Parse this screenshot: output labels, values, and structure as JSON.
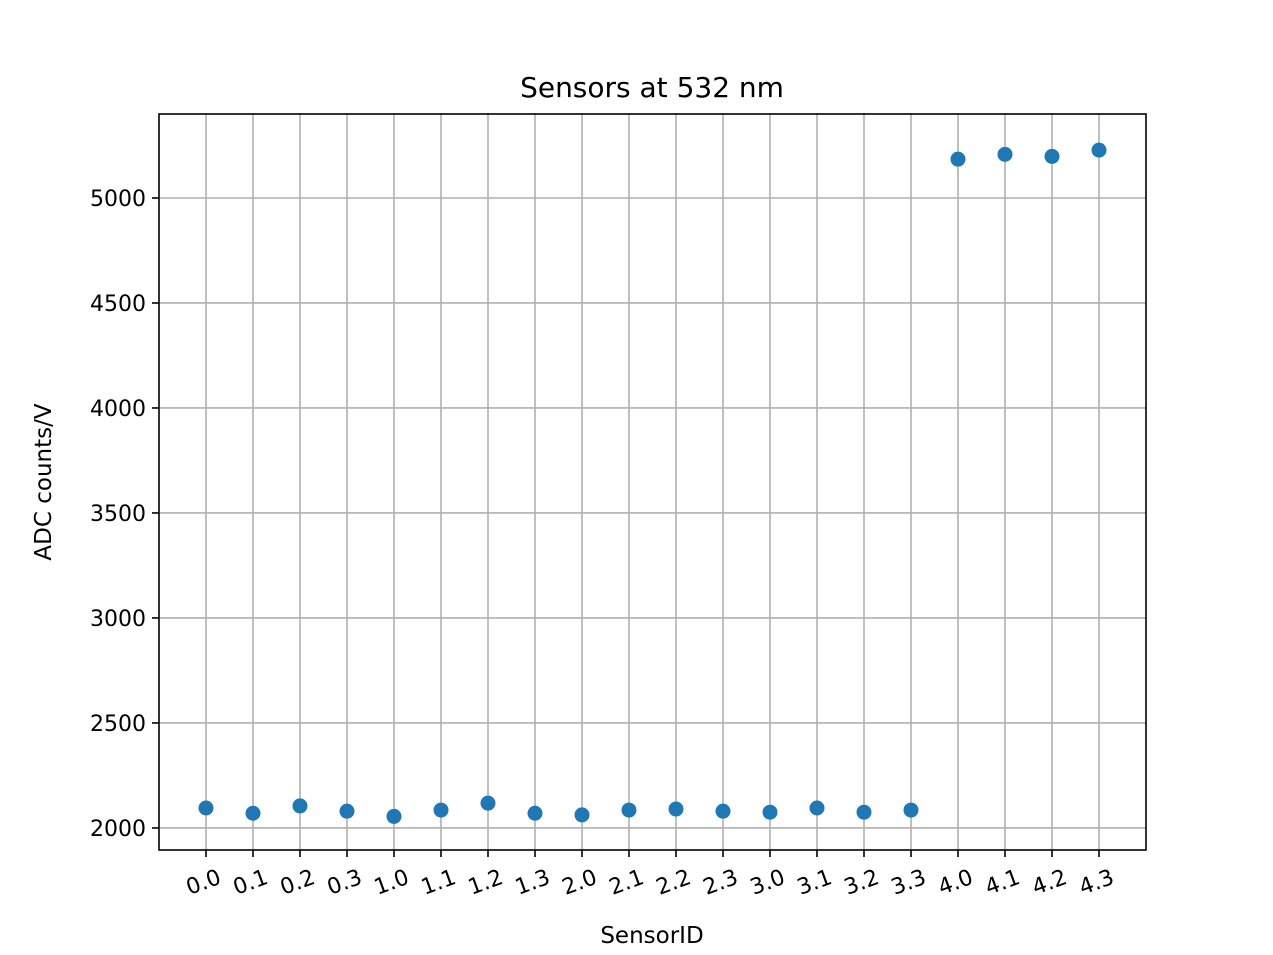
{
  "chart_data": {
    "type": "scatter",
    "title": "Sensors at 532 nm",
    "xlabel": "SensorID",
    "ylabel": "ADC counts/V",
    "categories": [
      "0.0",
      "0.1",
      "0.2",
      "0.3",
      "1.0",
      "1.1",
      "1.2",
      "1.3",
      "2.0",
      "2.1",
      "2.2",
      "2.3",
      "3.0",
      "3.1",
      "3.2",
      "3.3",
      "4.0",
      "4.1",
      "4.2",
      "4.3"
    ],
    "values": [
      2095,
      2070,
      2105,
      2080,
      2055,
      2085,
      2118,
      2070,
      2062,
      2085,
      2090,
      2080,
      2075,
      2095,
      2075,
      2085,
      5185,
      5208,
      5198,
      5228
    ],
    "ylim": [
      1895,
      5400
    ],
    "yticks": [
      2000,
      2500,
      3000,
      3500,
      4000,
      4500,
      5000
    ],
    "xtick_rotation": -20,
    "grid": true,
    "marker_color": "#1f77b4"
  }
}
